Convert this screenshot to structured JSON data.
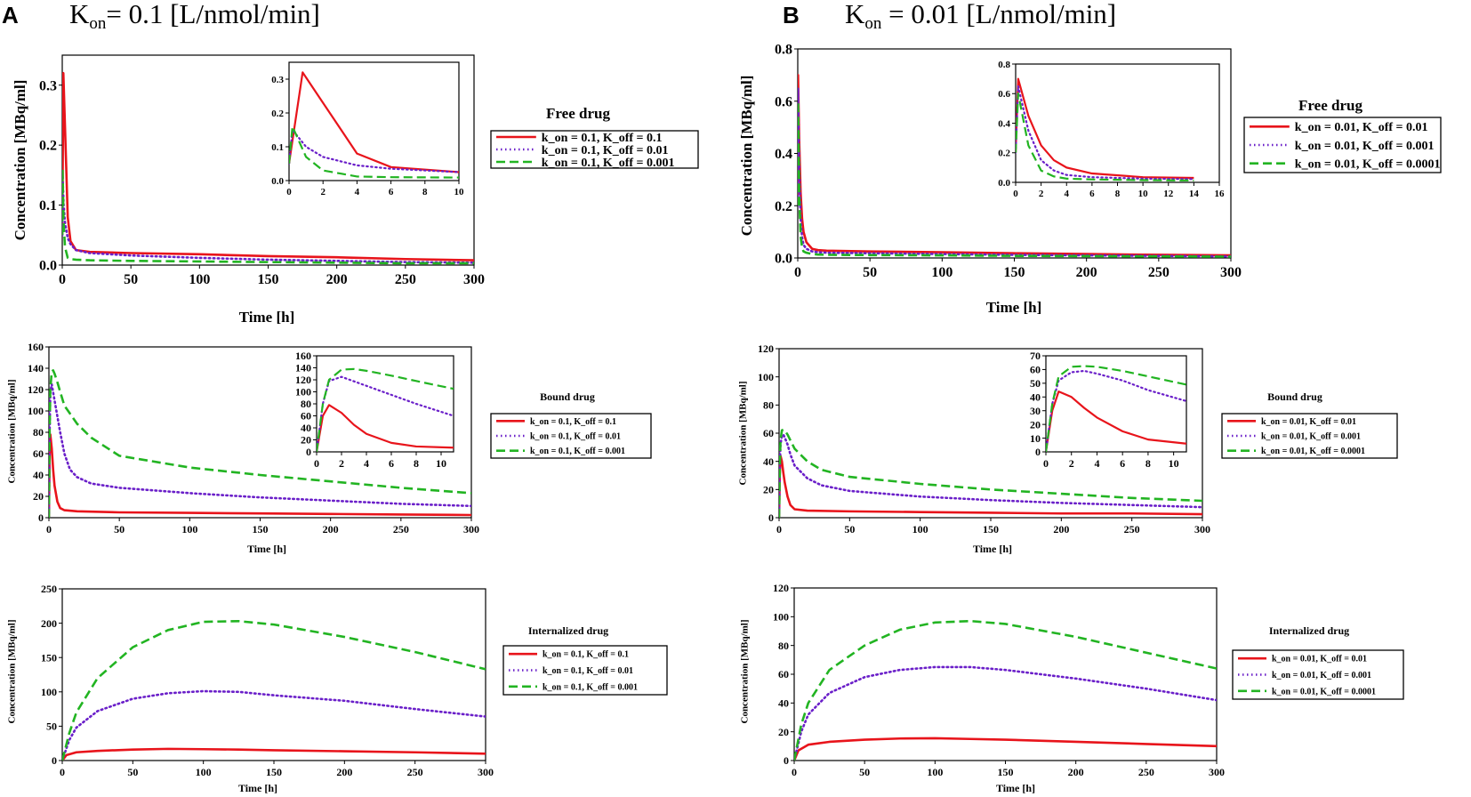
{
  "panels": {
    "A": {
      "letter": "A",
      "title_prefix": "K",
      "title_sub": "on",
      "title_suffix": "= 0.1 [L/nmol/min]"
    },
    "B": {
      "letter": "B",
      "title_prefix": "K",
      "title_sub": "on",
      "title_suffix": " = 0.01 [L/nmol/min]"
    }
  },
  "colors": {
    "red": "#e8141b",
    "purple": "#6a1fc9",
    "green": "#22b422"
  },
  "chart_data": [
    {
      "id": "A-free",
      "panel": "A",
      "type": "line",
      "title": "Free drug",
      "xlabel": "Time [h]",
      "ylabel": "Concentration [MBq/ml]",
      "xlim": [
        0,
        300
      ],
      "ylim": [
        0,
        0.35
      ],
      "xticks": [
        0,
        50,
        100,
        150,
        200,
        250,
        300
      ],
      "yticks": [
        0.0,
        0.1,
        0.2,
        0.3
      ],
      "yformat": 1,
      "series": [
        {
          "name": "k_on = 0.1, K_off = 0.1",
          "color": "red",
          "style": "solid",
          "x": [
            0,
            0.8,
            2,
            4,
            6,
            10,
            20,
            50,
            100,
            150,
            200,
            250,
            300
          ],
          "y": [
            0.05,
            0.32,
            0.23,
            0.08,
            0.04,
            0.025,
            0.022,
            0.02,
            0.018,
            0.015,
            0.013,
            0.01,
            0.008
          ]
        },
        {
          "name": "k_on = 0.1, K_off = 0.01",
          "color": "purple",
          "style": "dotted",
          "x": [
            0,
            0.2,
            1,
            2,
            4,
            6,
            10,
            20,
            50,
            100,
            150,
            200,
            250,
            300
          ],
          "y": [
            0.05,
            0.15,
            0.1,
            0.07,
            0.045,
            0.035,
            0.025,
            0.02,
            0.016,
            0.012,
            0.009,
            0.007,
            0.005,
            0.004
          ]
        },
        {
          "name": "k_on = 0.1, K_off = 0.001",
          "color": "green",
          "style": "dashed",
          "x": [
            0,
            0.2,
            1,
            2,
            4,
            6,
            10,
            20,
            50,
            100,
            150,
            200,
            250,
            300
          ],
          "y": [
            0.05,
            0.16,
            0.07,
            0.03,
            0.012,
            0.01,
            0.009,
            0.008,
            0.007,
            0.006,
            0.005,
            0.004,
            0.003,
            0.003
          ]
        }
      ],
      "inset": {
        "xlim": [
          0,
          10
        ],
        "ylim": [
          0,
          0.35
        ],
        "xticks": [
          0,
          2,
          4,
          6,
          8,
          10
        ],
        "yticks": [
          0.0,
          0.1,
          0.2,
          0.3
        ],
        "yformat": 1
      }
    },
    {
      "id": "A-bound",
      "panel": "A",
      "type": "line",
      "title": "Bound drug",
      "xlabel": "Time [h]",
      "ylabel": "Concentration [MBq/ml]",
      "xlim": [
        0,
        300
      ],
      "ylim": [
        0,
        160
      ],
      "xticks": [
        0,
        50,
        100,
        150,
        200,
        250,
        300
      ],
      "yticks": [
        0,
        20,
        40,
        60,
        80,
        100,
        120,
        140,
        160
      ],
      "yformat": 0,
      "series": [
        {
          "name": "k_on = 0.1, K_off = 0.1",
          "color": "red",
          "style": "solid",
          "x": [
            0,
            0.5,
            1,
            2,
            3,
            4,
            6,
            8,
            11,
            20,
            50,
            100,
            150,
            200,
            250,
            300
          ],
          "y": [
            0,
            60,
            78,
            65,
            45,
            30,
            15,
            9,
            7,
            6,
            5,
            4.5,
            4,
            3.5,
            3,
            2.5
          ]
        },
        {
          "name": "k_on = 0.1, K_off = 0.01",
          "color": "purple",
          "style": "dotted",
          "x": [
            0,
            0.5,
            1,
            2,
            4,
            6,
            8,
            11,
            15,
            20,
            30,
            50,
            100,
            150,
            200,
            250,
            300
          ],
          "y": [
            0,
            80,
            118,
            125,
            110,
            95,
            80,
            60,
            45,
            38,
            32,
            28,
            23,
            19,
            16,
            13,
            11
          ]
        },
        {
          "name": "k_on = 0.1, K_off = 0.001",
          "color": "green",
          "style": "dashed",
          "x": [
            0,
            0.5,
            1,
            2,
            3,
            4,
            6,
            8,
            11,
            20,
            30,
            50,
            100,
            150,
            200,
            250,
            300
          ],
          "y": [
            0,
            80,
            120,
            137,
            138,
            135,
            127,
            118,
            105,
            88,
            75,
            58,
            47,
            40,
            34,
            28,
            23
          ]
        }
      ],
      "inset": {
        "xlim": [
          0,
          11
        ],
        "ylim": [
          0,
          160
        ],
        "xticks": [
          0,
          2,
          4,
          6,
          8,
          10
        ],
        "yticks": [
          0,
          20,
          40,
          60,
          80,
          100,
          120,
          140,
          160
        ],
        "yformat": 0
      }
    },
    {
      "id": "A-internalized",
      "panel": "A",
      "type": "line",
      "title": "Internalized drug",
      "xlabel": "Time [h]",
      "ylabel": "Concentration [MBq/ml]",
      "xlim": [
        0,
        300
      ],
      "ylim": [
        0,
        250
      ],
      "xticks": [
        0,
        50,
        100,
        150,
        200,
        250,
        300
      ],
      "yticks": [
        0,
        50,
        100,
        150,
        200,
        250
      ],
      "yformat": 0,
      "series": [
        {
          "name": "k_on = 0.1, K_off = 0.1",
          "color": "red",
          "style": "solid",
          "x": [
            0,
            3,
            10,
            25,
            50,
            75,
            100,
            125,
            150,
            200,
            250,
            300
          ],
          "y": [
            0,
            8,
            12,
            14,
            16,
            17,
            16.5,
            16,
            15,
            13.5,
            12,
            10
          ]
        },
        {
          "name": "k_on = 0.1, K_off = 0.01",
          "color": "purple",
          "style": "dotted",
          "x": [
            0,
            5,
            10,
            25,
            50,
            75,
            100,
            125,
            150,
            200,
            250,
            300
          ],
          "y": [
            0,
            30,
            48,
            72,
            90,
            98,
            101,
            100,
            95,
            87,
            75,
            64
          ]
        },
        {
          "name": "k_on = 0.1, K_off = 0.001",
          "color": "green",
          "style": "dashed",
          "x": [
            0,
            5,
            10,
            25,
            50,
            75,
            100,
            125,
            150,
            200,
            250,
            300
          ],
          "y": [
            0,
            40,
            70,
            120,
            165,
            190,
            202,
            203,
            198,
            180,
            158,
            133
          ]
        }
      ]
    },
    {
      "id": "B-free",
      "panel": "B",
      "type": "line",
      "title": "Free drug",
      "xlabel": "Time [h]",
      "ylabel": "Concentration [MBq/ml]",
      "xlim": [
        0,
        300
      ],
      "ylim": [
        0,
        0.8
      ],
      "xticks": [
        0,
        50,
        100,
        150,
        200,
        250,
        300
      ],
      "yticks": [
        0.0,
        0.2,
        0.4,
        0.6,
        0.8
      ],
      "yformat": 1,
      "series": [
        {
          "name": "k_on = 0.01, K_off = 0.01",
          "color": "red",
          "style": "solid",
          "x": [
            0,
            0.2,
            1,
            2,
            3,
            4,
            6,
            10,
            14,
            20,
            50,
            100,
            150,
            200,
            250,
            300
          ],
          "y": [
            0.2,
            0.7,
            0.45,
            0.25,
            0.15,
            0.1,
            0.06,
            0.035,
            0.03,
            0.028,
            0.025,
            0.022,
            0.018,
            0.015,
            0.012,
            0.01
          ]
        },
        {
          "name": "k_on = 0.01, K_off = 0.001",
          "color": "purple",
          "style": "dotted",
          "x": [
            0,
            0.2,
            1,
            2,
            3,
            4,
            6,
            10,
            14,
            20,
            50,
            100,
            150,
            200,
            250,
            300
          ],
          "y": [
            0.2,
            0.65,
            0.35,
            0.15,
            0.08,
            0.05,
            0.035,
            0.025,
            0.022,
            0.02,
            0.018,
            0.015,
            0.012,
            0.01,
            0.008,
            0.006
          ]
        },
        {
          "name": "k_on = 0.01, K_off = 0.0001",
          "color": "green",
          "style": "dashed",
          "x": [
            0,
            0.2,
            1,
            2,
            3,
            4,
            6,
            10,
            14,
            20,
            50,
            100,
            150,
            200,
            250,
            300
          ],
          "y": [
            0.2,
            0.6,
            0.25,
            0.08,
            0.04,
            0.025,
            0.02,
            0.015,
            0.013,
            0.012,
            0.011,
            0.01,
            0.008,
            0.007,
            0.006,
            0.005
          ]
        }
      ],
      "inset": {
        "xlim": [
          0,
          16
        ],
        "ylim": [
          0,
          0.8
        ],
        "xticks": [
          0,
          2,
          4,
          6,
          8,
          10,
          12,
          14,
          16
        ],
        "yticks": [
          0.0,
          0.2,
          0.4,
          0.6,
          0.8
        ],
        "yformat": 1
      }
    },
    {
      "id": "B-bound",
      "panel": "B",
      "type": "line",
      "title": "Bound drug",
      "xlabel": "Time [h]",
      "ylabel": "Concentration [MBq/ml]",
      "xlim": [
        0,
        300
      ],
      "ylim": [
        0,
        120
      ],
      "xticks": [
        0,
        50,
        100,
        150,
        200,
        250,
        300
      ],
      "yticks": [
        0,
        20,
        40,
        60,
        80,
        100,
        120
      ],
      "yformat": 0,
      "series": [
        {
          "name": "k_on = 0.01, K_off = 0.01",
          "color": "red",
          "style": "solid",
          "x": [
            0,
            0.5,
            1,
            2,
            3,
            4,
            6,
            8,
            11,
            20,
            50,
            100,
            150,
            200,
            250,
            300
          ],
          "y": [
            0,
            30,
            44,
            40,
            32,
            25,
            15,
            9,
            6,
            5,
            4.5,
            4,
            3.5,
            3,
            3,
            2.5
          ]
        },
        {
          "name": "k_on = 0.01, K_off = 0.001",
          "color": "purple",
          "style": "dotted",
          "x": [
            0,
            0.5,
            1,
            2,
            3,
            4,
            6,
            8,
            11,
            20,
            30,
            50,
            100,
            150,
            200,
            250,
            300
          ],
          "y": [
            0,
            35,
            52,
            58,
            59,
            57,
            52,
            45,
            37,
            28,
            23,
            19,
            15,
            12.5,
            10.5,
            9,
            7.5
          ]
        },
        {
          "name": "k_on = 0.01, K_off = 0.0001",
          "color": "green",
          "style": "dashed",
          "x": [
            0,
            0.5,
            1,
            2,
            3,
            4,
            6,
            8,
            11,
            20,
            30,
            50,
            100,
            150,
            200,
            250,
            300
          ],
          "y": [
            0,
            35,
            55,
            62,
            62.5,
            62,
            59,
            55,
            49,
            40,
            34,
            29,
            24,
            20,
            17,
            14,
            12
          ]
        }
      ],
      "inset": {
        "xlim": [
          0,
          11
        ],
        "ylim": [
          0,
          70
        ],
        "xticks": [
          0,
          2,
          4,
          6,
          8,
          10
        ],
        "yticks": [
          0,
          10,
          20,
          30,
          40,
          50,
          60,
          70
        ],
        "yformat": 0
      }
    },
    {
      "id": "B-internalized",
      "panel": "B",
      "type": "line",
      "title": "Internalized drug",
      "xlabel": "Time [h]",
      "ylabel": "Concentration [MBq/ml]",
      "xlim": [
        0,
        300
      ],
      "ylim": [
        0,
        120
      ],
      "xticks": [
        0,
        50,
        100,
        150,
        200,
        250,
        300
      ],
      "yticks": [
        0,
        20,
        40,
        60,
        80,
        100,
        120
      ],
      "yformat": 0,
      "series": [
        {
          "name": "k_on = 0.01, K_off = 0.01",
          "color": "red",
          "style": "solid",
          "x": [
            0,
            3,
            10,
            25,
            50,
            75,
            100,
            125,
            150,
            200,
            250,
            300
          ],
          "y": [
            0,
            7,
            11,
            13,
            14.5,
            15.3,
            15.5,
            15,
            14.5,
            13,
            11.5,
            10
          ]
        },
        {
          "name": "k_on = 0.01, K_off = 0.001",
          "color": "purple",
          "style": "dotted",
          "x": [
            0,
            5,
            10,
            25,
            50,
            75,
            100,
            125,
            150,
            200,
            250,
            300
          ],
          "y": [
            0,
            20,
            32,
            47,
            58,
            63,
            65,
            65,
            63,
            57,
            50,
            42
          ]
        },
        {
          "name": "k_on = 0.01, K_off = 0.0001",
          "color": "green",
          "style": "dashed",
          "x": [
            0,
            5,
            10,
            25,
            50,
            75,
            100,
            125,
            150,
            200,
            250,
            300
          ],
          "y": [
            0,
            25,
            40,
            63,
            80,
            91,
            96,
            97,
            95,
            86,
            75,
            64
          ]
        }
      ]
    }
  ]
}
